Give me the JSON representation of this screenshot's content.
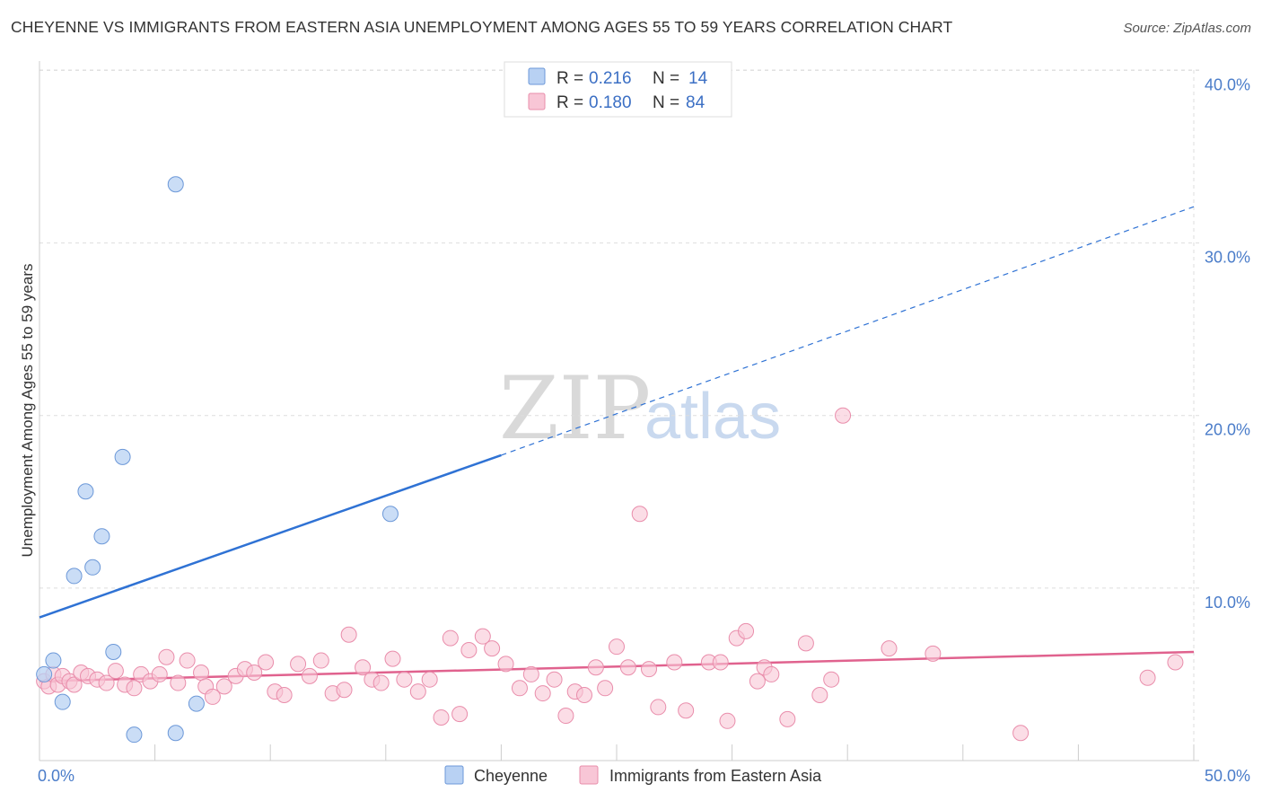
{
  "title": "CHEYENNE VS IMMIGRANTS FROM EASTERN ASIA UNEMPLOYMENT AMONG AGES 55 TO 59 YEARS CORRELATION CHART",
  "source": "Source: ZipAtlas.com",
  "watermark": {
    "zip": "ZIP",
    "atlas": "atlas"
  },
  "colors": {
    "blue_fill": "#b8d1f3",
    "blue_stroke": "#6c98d8",
    "blue_line": "#2f72d4",
    "pink_fill": "#f8c6d6",
    "pink_stroke": "#e98dab",
    "pink_line": "#e0628e",
    "grid": "#dddddd",
    "axis_text": "#4a7cc9"
  },
  "legend": {
    "rows": [
      {
        "r_label": "R =",
        "r_value": "0.216",
        "n_label": "N =",
        "n_value": "14"
      },
      {
        "r_label": "R =",
        "r_value": "0.180",
        "n_label": "N =",
        "n_value": "84"
      }
    ]
  },
  "chart_data": {
    "type": "scatter",
    "title": "CHEYENNE VS IMMIGRANTS FROM EASTERN ASIA UNEMPLOYMENT AMONG AGES 55 TO 59 YEARS CORRELATION CHART",
    "xlabel": "",
    "ylabel": "Unemployment Among Ages 55 to 59 years",
    "xlim": [
      0,
      50
    ],
    "ylim": [
      0,
      42
    ],
    "x_tick_labels": [
      "0.0%",
      "50.0%"
    ],
    "y_ticks": [
      10,
      20,
      30,
      40
    ],
    "y_tick_labels": [
      "10.0%",
      "20.0%",
      "30.0%",
      "40.0%"
    ],
    "grid": true,
    "legend_position": "top-center and bottom",
    "series": [
      {
        "name": "Cheyenne",
        "color": "#b8d1f3",
        "points": [
          [
            0.2,
            5.0
          ],
          [
            0.6,
            5.8
          ],
          [
            1.0,
            3.4
          ],
          [
            1.5,
            10.7
          ],
          [
            2.0,
            15.6
          ],
          [
            2.3,
            11.2
          ],
          [
            2.7,
            13.0
          ],
          [
            3.2,
            6.3
          ],
          [
            3.6,
            17.6
          ],
          [
            4.1,
            1.5
          ],
          [
            5.9,
            33.4
          ],
          [
            5.9,
            1.6
          ],
          [
            6.8,
            3.3
          ],
          [
            15.2,
            14.3
          ]
        ],
        "trend": {
          "x0": 0,
          "y0": 8.3,
          "x1": 20,
          "y1": 17.7,
          "dashed_x1": 50,
          "dashed_y1": 32.1
        }
      },
      {
        "name": "Immigrants from Eastern Asia",
        "color": "#f8c6d6",
        "points": [
          [
            0.2,
            4.6
          ],
          [
            0.4,
            4.3
          ],
          [
            0.6,
            5.0
          ],
          [
            0.8,
            4.4
          ],
          [
            1.0,
            4.9
          ],
          [
            1.3,
            4.6
          ],
          [
            1.5,
            4.4
          ],
          [
            1.8,
            5.1
          ],
          [
            2.1,
            4.9
          ],
          [
            2.5,
            4.7
          ],
          [
            2.9,
            4.5
          ],
          [
            3.3,
            5.2
          ],
          [
            3.7,
            4.4
          ],
          [
            4.1,
            4.2
          ],
          [
            4.4,
            5.0
          ],
          [
            4.8,
            4.6
          ],
          [
            5.2,
            5.0
          ],
          [
            5.5,
            6.0
          ],
          [
            6.0,
            4.5
          ],
          [
            6.4,
            5.8
          ],
          [
            7.0,
            5.1
          ],
          [
            7.2,
            4.3
          ],
          [
            7.5,
            3.7
          ],
          [
            8.0,
            4.3
          ],
          [
            8.5,
            4.9
          ],
          [
            8.9,
            5.3
          ],
          [
            9.3,
            5.1
          ],
          [
            9.8,
            5.7
          ],
          [
            10.2,
            4.0
          ],
          [
            10.6,
            3.8
          ],
          [
            11.2,
            5.6
          ],
          [
            11.7,
            4.9
          ],
          [
            12.2,
            5.8
          ],
          [
            12.7,
            3.9
          ],
          [
            13.2,
            4.1
          ],
          [
            13.4,
            7.3
          ],
          [
            14.0,
            5.4
          ],
          [
            14.4,
            4.7
          ],
          [
            14.8,
            4.5
          ],
          [
            15.3,
            5.9
          ],
          [
            15.8,
            4.7
          ],
          [
            16.4,
            4.0
          ],
          [
            16.9,
            4.7
          ],
          [
            17.4,
            2.5
          ],
          [
            17.8,
            7.1
          ],
          [
            18.2,
            2.7
          ],
          [
            18.6,
            6.4
          ],
          [
            19.2,
            7.2
          ],
          [
            19.6,
            6.5
          ],
          [
            20.2,
            5.6
          ],
          [
            20.8,
            4.2
          ],
          [
            21.3,
            5.0
          ],
          [
            21.8,
            3.9
          ],
          [
            22.3,
            4.7
          ],
          [
            22.8,
            2.6
          ],
          [
            23.2,
            4.0
          ],
          [
            23.6,
            3.8
          ],
          [
            24.1,
            5.4
          ],
          [
            24.5,
            4.2
          ],
          [
            25.0,
            6.6
          ],
          [
            25.5,
            5.4
          ],
          [
            26.0,
            14.3
          ],
          [
            26.4,
            5.3
          ],
          [
            26.8,
            3.1
          ],
          [
            27.5,
            5.7
          ],
          [
            28.0,
            2.9
          ],
          [
            29.0,
            5.7
          ],
          [
            29.5,
            5.7
          ],
          [
            29.8,
            2.3
          ],
          [
            30.2,
            7.1
          ],
          [
            30.6,
            7.5
          ],
          [
            31.1,
            4.6
          ],
          [
            31.4,
            5.4
          ],
          [
            31.7,
            5.0
          ],
          [
            32.4,
            2.4
          ],
          [
            33.2,
            6.8
          ],
          [
            33.8,
            3.8
          ],
          [
            34.3,
            4.7
          ],
          [
            34.8,
            20.0
          ],
          [
            36.8,
            6.5
          ],
          [
            38.7,
            6.2
          ],
          [
            42.5,
            1.6
          ],
          [
            48.0,
            4.8
          ],
          [
            49.2,
            5.7
          ]
        ],
        "trend": {
          "x0": 0,
          "y0": 4.6,
          "x1": 50,
          "y1": 6.3
        }
      }
    ]
  },
  "bottom_legend": [
    {
      "label": "Cheyenne"
    },
    {
      "label": "Immigrants from Eastern Asia"
    }
  ]
}
